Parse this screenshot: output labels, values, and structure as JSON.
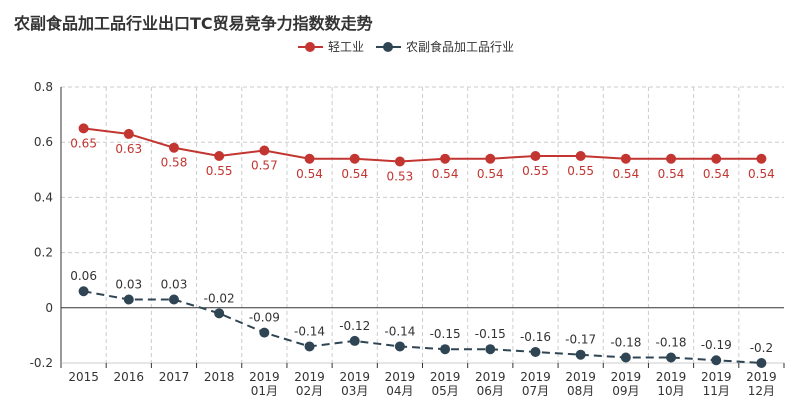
{
  "chart_data": {
    "type": "line",
    "title": "农副食品加工品行业出口TC贸易竞争力指数数走势",
    "categories": [
      [
        "2015"
      ],
      [
        "2016"
      ],
      [
        "2017"
      ],
      [
        "2018"
      ],
      [
        "2019",
        "01月"
      ],
      [
        "2019",
        "02月"
      ],
      [
        "2019",
        "03月"
      ],
      [
        "2019",
        "04月"
      ],
      [
        "2019",
        "05月"
      ],
      [
        "2019",
        "06月"
      ],
      [
        "2019",
        "07月"
      ],
      [
        "2019",
        "08月"
      ],
      [
        "2019",
        "09月"
      ],
      [
        "2019",
        "10月"
      ],
      [
        "2019",
        "11月"
      ],
      [
        "2019",
        "12月"
      ]
    ],
    "series": [
      {
        "name": "轻工业",
        "color": "#c23531",
        "line_style": "solid",
        "label_position": "below",
        "values": [
          0.65,
          0.63,
          0.58,
          0.55,
          0.57,
          0.54,
          0.54,
          0.53,
          0.54,
          0.54,
          0.55,
          0.55,
          0.54,
          0.54,
          0.54,
          0.54
        ]
      },
      {
        "name": "农副食品加工品行业",
        "color": "#2f4554",
        "line_style": "dashed",
        "label_position": "above",
        "values": [
          0.06,
          0.03,
          0.03,
          -0.02,
          -0.09,
          -0.14,
          -0.12,
          -0.14,
          -0.15,
          -0.15,
          -0.16,
          -0.17,
          -0.18,
          -0.18,
          -0.19,
          -0.2
        ]
      }
    ],
    "ylim": [
      -0.2,
      0.8
    ],
    "yticks": [
      -0.2,
      0,
      0.2,
      0.4,
      0.6,
      0.8
    ],
    "grid": true,
    "legend": "top-center"
  }
}
